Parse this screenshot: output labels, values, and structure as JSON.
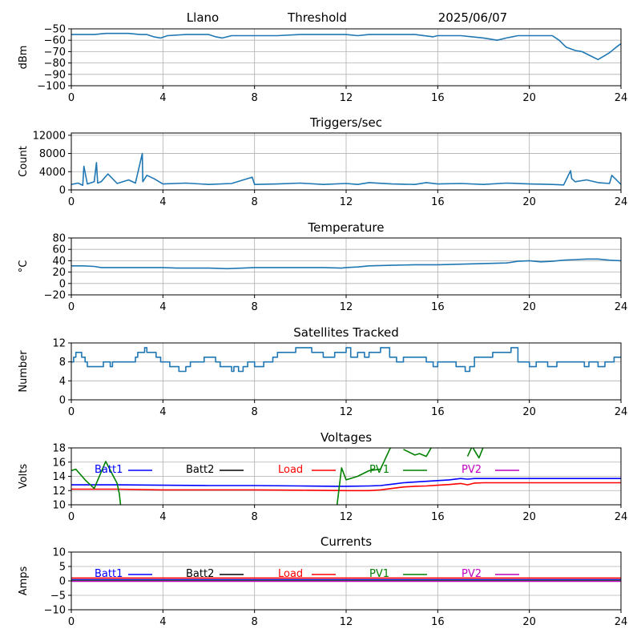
{
  "header": {
    "site": "Llano",
    "mode": "Threshold",
    "date": "2025/06/07"
  },
  "x_ticks": [
    "0",
    "4",
    "8",
    "12",
    "16",
    "20",
    "24"
  ],
  "chart_data": [
    {
      "id": "signal",
      "type": "line",
      "title": "",
      "ylabel": "dBm",
      "xlim": [
        0,
        24
      ],
      "ylim": [
        -100,
        -50
      ],
      "yticks": [
        -100,
        -90,
        -80,
        -70,
        -60,
        -50
      ],
      "grid": true,
      "series": [
        {
          "color": "#1f77b4",
          "x": [
            0,
            0.5,
            1,
            1.5,
            2,
            2.5,
            3,
            3.3,
            3.6,
            3.9,
            4.2,
            5,
            6,
            6.3,
            6.6,
            7,
            8,
            9,
            10,
            11,
            12,
            12.5,
            13,
            14,
            15,
            15.8,
            16,
            17,
            17.5,
            18,
            18.6,
            19,
            19.5,
            20,
            20.5,
            21,
            21.3,
            21.6,
            22,
            22.3,
            22.7,
            23,
            23.5,
            23.8,
            24
          ],
          "y": [
            -55,
            -55,
            -55,
            -54,
            -54,
            -54,
            -55,
            -55,
            -57,
            -58,
            -56,
            -55,
            -55,
            -57,
            -58,
            -56,
            -56,
            -56,
            -55,
            -55,
            -55,
            -56,
            -55,
            -55,
            -55,
            -57,
            -56,
            -56,
            -57,
            -58,
            -60,
            -58,
            -56,
            -56,
            -56,
            -56,
            -60,
            -66,
            -69,
            -70,
            -74,
            -77,
            -71,
            -66,
            -63
          ]
        }
      ]
    },
    {
      "id": "triggers",
      "type": "line",
      "title": "Triggers/sec",
      "ylabel": "Count",
      "xlim": [
        0,
        24
      ],
      "ylim": [
        0,
        12500
      ],
      "yticks": [
        0,
        4000,
        8000,
        12000
      ],
      "grid": true,
      "series": [
        {
          "color": "#1f77b4",
          "x": [
            0,
            0.3,
            0.5,
            0.55,
            0.7,
            1,
            1.1,
            1.15,
            1.3,
            1.6,
            2,
            2.5,
            2.8,
            3.1,
            3.12,
            3.3,
            3.6,
            4,
            5,
            6,
            7,
            7.9,
            8,
            9,
            10,
            11,
            12,
            12.5,
            13,
            14,
            15,
            15.5,
            16,
            17,
            18,
            19,
            20,
            21,
            21.5,
            21.8,
            21.85,
            22,
            22.5,
            23,
            23.5,
            23.6,
            24
          ],
          "y": [
            1200,
            1500,
            1000,
            5200,
            1300,
            1800,
            6000,
            1500,
            1800,
            3500,
            1400,
            2200,
            1500,
            8000,
            1800,
            3200,
            2500,
            1300,
            1500,
            1200,
            1400,
            2800,
            1200,
            1300,
            1500,
            1200,
            1400,
            1200,
            1600,
            1300,
            1200,
            1600,
            1300,
            1400,
            1200,
            1500,
            1300,
            1200,
            1100,
            4200,
            2500,
            1800,
            2200,
            1600,
            1400,
            3200,
            1200
          ]
        }
      ]
    },
    {
      "id": "temperature",
      "type": "line",
      "title": "Temperature",
      "ylabel": "°C",
      "xlim": [
        0,
        24
      ],
      "ylim": [
        -20,
        80
      ],
      "yticks": [
        -20,
        0,
        20,
        40,
        60,
        80
      ],
      "grid": true,
      "series": [
        {
          "color": "#1f77b4",
          "x": [
            0,
            0.5,
            1,
            1.3,
            2,
            3,
            4,
            4.6,
            5,
            6,
            6.8,
            7.5,
            8,
            9,
            10,
            11,
            11.8,
            12,
            12.5,
            13,
            14,
            15,
            16,
            17,
            18,
            19,
            19.5,
            20,
            20.5,
            21,
            21.5,
            22,
            22.5,
            23,
            23.5,
            24
          ],
          "y": [
            31,
            31,
            30,
            28,
            28,
            28,
            28,
            27,
            27,
            27,
            26,
            27,
            28,
            28,
            28,
            28,
            27,
            28,
            29,
            31,
            32,
            33,
            33,
            34,
            35,
            36,
            39,
            40,
            38,
            39,
            41,
            42,
            43,
            43,
            41,
            40
          ]
        }
      ]
    },
    {
      "id": "satellites",
      "type": "line",
      "step": true,
      "title": "Satellites Tracked",
      "ylabel": "Number",
      "xlim": [
        0,
        24
      ],
      "ylim": [
        0,
        12
      ],
      "yticks": [
        0,
        4,
        8,
        12
      ],
      "grid": true,
      "series": [
        {
          "color": "#1f77b4",
          "x": [
            0,
            0.1,
            0.2,
            0.3,
            0.45,
            0.6,
            0.7,
            1.4,
            1.7,
            1.8,
            2.8,
            2.9,
            3.2,
            3.3,
            3.7,
            3.9,
            4.3,
            4.6,
            4.7,
            5,
            5.2,
            5.5,
            5.8,
            6.3,
            6.5,
            7,
            7.1,
            7.3,
            7.5,
            7.7,
            8,
            8.4,
            8.8,
            9,
            9.3,
            9.8,
            10.5,
            11,
            11.5,
            12,
            12.2,
            12.5,
            12.8,
            13,
            13.5,
            13.9,
            14.2,
            14.5,
            15,
            15.5,
            15.8,
            16,
            16.4,
            16.8,
            17.2,
            17.4,
            17.6,
            18,
            18.4,
            18.8,
            19.2,
            19.5,
            19.8,
            20,
            20.3,
            20.8,
            21.2,
            21.5,
            22,
            22.4,
            22.6,
            23,
            23.3,
            23.7,
            24
          ],
          "y": [
            8,
            9,
            10,
            10,
            9,
            8,
            7,
            8,
            7,
            8,
            9,
            10,
            11,
            10,
            9,
            8,
            7,
            7,
            6,
            7,
            8,
            8,
            9,
            8,
            7,
            6,
            7,
            6,
            7,
            8,
            7,
            8,
            9,
            10,
            10,
            11,
            10,
            9,
            10,
            11,
            9,
            10,
            9,
            10,
            11,
            9,
            8,
            9,
            9,
            8,
            7,
            8,
            8,
            7,
            6,
            7,
            9,
            9,
            10,
            10,
            11,
            8,
            8,
            7,
            8,
            7,
            8,
            8,
            8,
            7,
            8,
            7,
            8,
            9,
            9
          ]
        }
      ]
    },
    {
      "id": "voltages",
      "type": "line",
      "title": "Voltages",
      "ylabel": "Volts",
      "xlim": [
        0,
        24
      ],
      "ylim": [
        10,
        18
      ],
      "yticks": [
        10,
        12,
        14,
        16,
        18
      ],
      "grid": true,
      "legend": "inside-top",
      "series": [
        {
          "name": "Batt1",
          "color": "#0000ff",
          "x": [
            0,
            2,
            4,
            6,
            8,
            10,
            11.5,
            12,
            13,
            13.5,
            14,
            14.5,
            15,
            15.5,
            16,
            16.5,
            17,
            17.3,
            17.6,
            18,
            19,
            20,
            21,
            22,
            23,
            24
          ],
          "y": [
            12.8,
            12.8,
            12.75,
            12.7,
            12.7,
            12.65,
            12.6,
            12.6,
            12.65,
            12.7,
            12.9,
            13.1,
            13.2,
            13.3,
            13.4,
            13.5,
            13.7,
            13.6,
            13.7,
            13.7,
            13.7,
            13.7,
            13.7,
            13.7,
            13.7,
            13.7
          ]
        },
        {
          "name": "Batt2",
          "color": "#000000",
          "x": [],
          "y": []
        },
        {
          "name": "Load",
          "color": "#ff0000",
          "x": [
            0,
            2,
            4,
            6,
            8,
            10,
            12,
            13,
            13.5,
            14,
            14.5,
            15,
            15.5,
            16,
            16.5,
            17,
            17.3,
            17.6,
            18,
            19,
            20,
            21,
            22,
            23,
            24
          ],
          "y": [
            12.2,
            12.2,
            12.1,
            12.1,
            12.1,
            12.05,
            12.0,
            12.0,
            12.1,
            12.3,
            12.5,
            12.6,
            12.65,
            12.75,
            12.85,
            13.0,
            12.8,
            13.05,
            13.1,
            13.1,
            13.1,
            13.1,
            13.1,
            13.1,
            13.1
          ]
        },
        {
          "name": "PV1",
          "color": "#008000",
          "x": [
            0,
            0.2,
            0.6,
            1,
            1.5,
            2,
            2.1,
            2.2,
            null,
            11.55,
            11.8,
            12,
            12.5,
            13,
            13.5,
            14,
            null,
            14.5,
            15,
            15.2,
            15.5,
            15.8,
            null,
            17.3,
            17.5,
            17.8,
            18
          ],
          "y": [
            14.8,
            15.0,
            13.5,
            12.3,
            16.1,
            13.0,
            11.5,
            8.5,
            null,
            8.5,
            15.2,
            13.5,
            14.0,
            14.8,
            15.0,
            18.5,
            null,
            17.8,
            17.0,
            17.2,
            16.8,
            18.5,
            null,
            16.8,
            18.2,
            16.6,
            18.2
          ]
        },
        {
          "name": "PV2",
          "color": "#bf00bf",
          "x": [],
          "y": []
        }
      ]
    },
    {
      "id": "currents",
      "type": "line",
      "title": "Currents",
      "ylabel": "Amps",
      "xlim": [
        0,
        24
      ],
      "ylim": [
        -10,
        10
      ],
      "yticks": [
        -10,
        -5,
        0,
        5,
        10
      ],
      "grid": true,
      "legend": "inside-top",
      "series": [
        {
          "name": "Batt1",
          "color": "#0000ff",
          "x": [
            0,
            24
          ],
          "y": [
            0.4,
            0.4
          ]
        },
        {
          "name": "Batt2",
          "color": "#000000",
          "x": [],
          "y": []
        },
        {
          "name": "Load",
          "color": "#ff0000",
          "x": [
            0,
            24
          ],
          "y": [
            1.0,
            1.0
          ]
        },
        {
          "name": "PV1",
          "color": "#008000",
          "x": [
            0,
            24
          ],
          "y": [
            0.1,
            0.1
          ]
        },
        {
          "name": "PV2",
          "color": "#bf00bf",
          "x": [
            0,
            24
          ],
          "y": [
            -0.1,
            -0.1
          ]
        }
      ]
    }
  ]
}
